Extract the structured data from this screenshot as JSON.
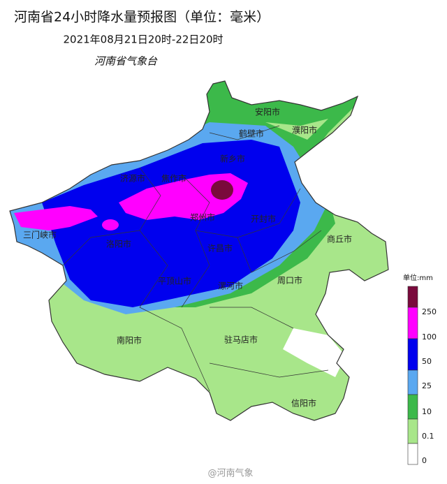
{
  "header": {
    "title": "河南省24小时降水量预报图（单位：毫米）",
    "subtitle": "2021年08月21日20时-22日20时",
    "issuer": "河南省气象台"
  },
  "cities": [
    "安阳市",
    "鹤壁市",
    "濮阳市",
    "新乡市",
    "济源市",
    "焦作市",
    "郑州市",
    "开封市",
    "三门峡市",
    "洛阳市",
    "许昌市",
    "商丘市",
    "平顶山市",
    "漯河市",
    "周口市",
    "南阳市",
    "驻马店市",
    "信阳市"
  ],
  "legend": {
    "unit": "单位:mm",
    "levels": [
      250,
      100,
      50,
      25,
      10,
      0.1,
      0
    ]
  },
  "watermark": "@河南气象"
}
